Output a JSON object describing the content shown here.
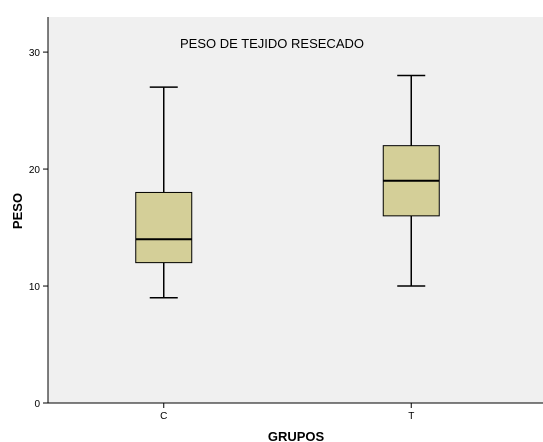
{
  "chart_data": {
    "type": "boxplot",
    "title": "PESO DE TEJIDO RESECADO",
    "xlabel": "GRUPOS",
    "ylabel": "PESO",
    "categories": [
      "C",
      "T"
    ],
    "boxes": [
      {
        "category": "C",
        "min": 9,
        "q1": 12,
        "median": 14,
        "q3": 18,
        "max": 27
      },
      {
        "category": "T",
        "min": 10,
        "q1": 16,
        "median": 19,
        "q3": 22,
        "max": 28
      }
    ],
    "ylim": [
      0,
      33
    ],
    "yticks": [
      0,
      10,
      20,
      30
    ],
    "grid": false,
    "colors": {
      "plot_background": "#f0f0f0",
      "box_fill": "#d4cf98",
      "stroke": "#000000"
    }
  }
}
